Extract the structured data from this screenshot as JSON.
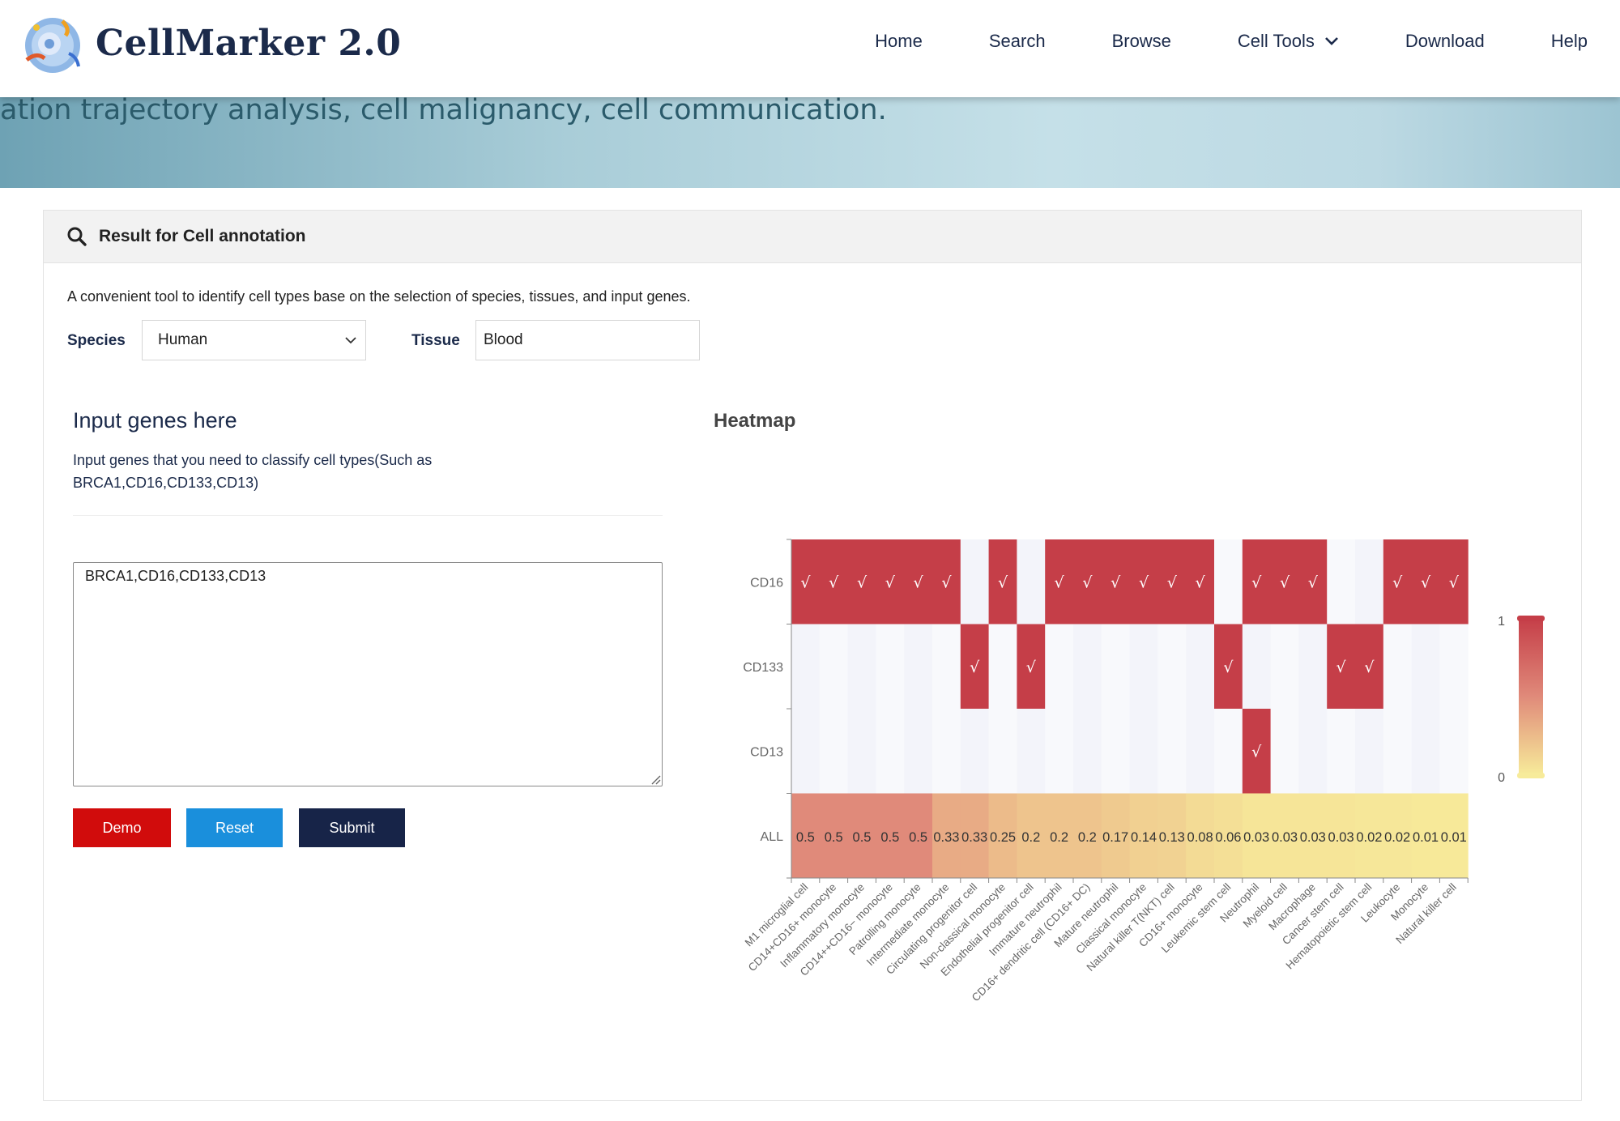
{
  "header": {
    "logo_text": "CellMarker 2.0",
    "nav": [
      "Home",
      "Search",
      "Browse",
      "Cell Tools",
      "Download",
      "Help"
    ]
  },
  "banner": {
    "text": "ation trajectory analysis, cell malignancy, cell communication."
  },
  "panel": {
    "title": "Result for Cell annotation",
    "description": "A convenient tool to identify cell types base on the selection of species, tissues, and input genes.",
    "species_label": "Species",
    "species_value": "Human",
    "tissue_label": "Tissue",
    "tissue_value": "Blood"
  },
  "input": {
    "title": "Input genes here",
    "help": "Input genes that you need to classify cell types(Such as BRCA1,CD16,CD133,CD13)",
    "genes_value": "BRCA1,CD16,CD133,CD13"
  },
  "buttons": {
    "demo": "Demo",
    "reset": "Reset",
    "submit": "Submit"
  },
  "heatmap_title": "Heatmap",
  "chart_data": {
    "type": "heatmap",
    "rows": [
      "CD16",
      "CD133",
      "CD13",
      "ALL"
    ],
    "columns": [
      "M1 microglial cell",
      "CD14+CD16+ monocyte",
      "Inflammatory monocyte",
      "CD14++CD16− monocyte",
      "Patrolling monocyte",
      "Intermediate monocyte",
      "Circulating progenitor cell",
      "Non-classical monocyte",
      "Endothelial progenitor cell",
      "Immature neutrophil",
      "CD16+ dendritic cell (CD16+ DC)",
      "Mature neutrophil",
      "Classical monocyte",
      "Natural killer T(NKT) cell",
      "CD16+ monocyte",
      "Leukemic stem cell",
      "Neutrophil",
      "Myeloid cell",
      "Macrophage",
      "Cancer stem cell",
      "Hematopoietic stem cell",
      "Leukocyte",
      "Monocyte",
      "Natural killer cell"
    ],
    "marker_matrix": [
      [
        1,
        1,
        1,
        1,
        1,
        1,
        0,
        1,
        0,
        1,
        1,
        1,
        1,
        1,
        1,
        0,
        1,
        1,
        1,
        0,
        0,
        1,
        1,
        1
      ],
      [
        0,
        0,
        0,
        0,
        0,
        0,
        1,
        0,
        1,
        0,
        0,
        0,
        0,
        0,
        0,
        1,
        0,
        0,
        0,
        1,
        1,
        0,
        0,
        0
      ],
      [
        0,
        0,
        0,
        0,
        0,
        0,
        0,
        0,
        0,
        0,
        0,
        0,
        0,
        0,
        0,
        0,
        1,
        0,
        0,
        0,
        0,
        0,
        0,
        0
      ]
    ],
    "all_values": [
      0.5,
      0.5,
      0.5,
      0.5,
      0.5,
      0.33,
      0.33,
      0.25,
      0.2,
      0.2,
      0.2,
      0.17,
      0.14,
      0.13,
      0.08,
      0.06,
      0.03,
      0.03,
      0.03,
      0.03,
      0.02,
      0.02,
      0.01,
      0.01
    ],
    "all_labels": [
      "0.5",
      "0.5",
      "0.5",
      "0.5",
      "0.5",
      "0.33",
      "0.33",
      "0.25",
      "0.2",
      "0.2",
      "0.2",
      "0.17",
      "0.14",
      "0.13",
      "0.08",
      "0.06",
      "0.03",
      "0.03",
      "0.03",
      "0.03",
      "0.02",
      "0.02",
      "0.01",
      "0.01"
    ],
    "check_symbol": "√",
    "colorscale": {
      "min": 0,
      "max": 1,
      "low_color": "#f7eb9a",
      "high_color": "#c53e48",
      "empty_color": "#f6f7fb"
    },
    "colorbar_labels": [
      "1",
      "0"
    ]
  }
}
